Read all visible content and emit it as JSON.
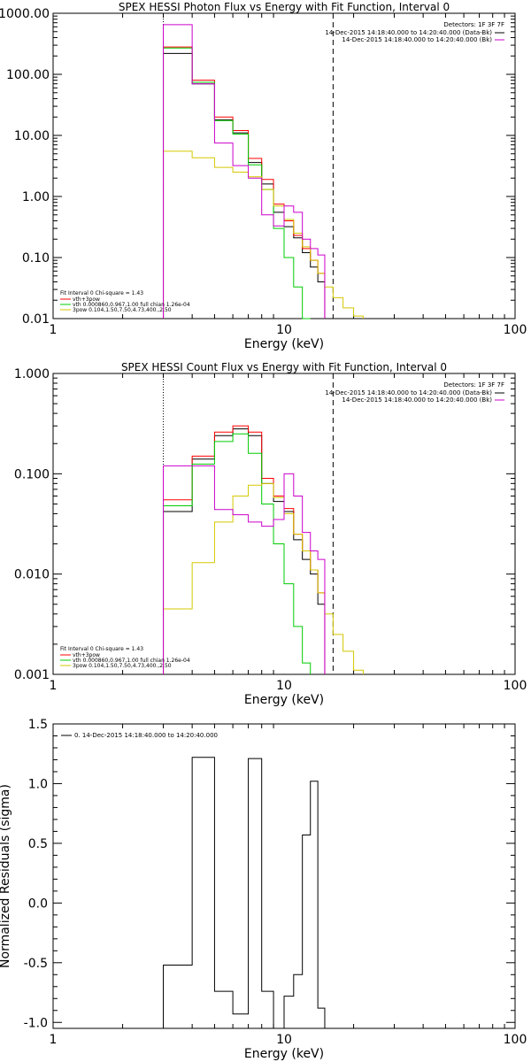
{
  "chart_data": [
    {
      "type": "line",
      "title": "SPEX HESSI Photon Flux vs Energy with Fit Function, Interval 0",
      "xlabel": "Energy (keV)",
      "ylabel": "",
      "xscale": "log",
      "yscale": "log",
      "xlim": [
        1,
        100
      ],
      "ylim": [
        0.01,
        1000
      ],
      "grid": false,
      "xticks": [
        "1",
        "10",
        "100"
      ],
      "yticks": [
        "1000.00",
        "100.00",
        "10.00",
        "1.00",
        "0.10",
        "0.01"
      ],
      "fit_range_keV": [
        3,
        16.3
      ],
      "legend_top_right": {
        "detectors": "Detectors: 1F 3F 7F",
        "entries": [
          {
            "label": "14-Dec-2015 14:18:40.000 to 14:20:40.000 (Data-Bk)",
            "color": "#000000"
          },
          {
            "label": "14-Dec-2015 14:18:40.000 to 14:20:40.000 (Bk)",
            "color": "#cc00cc"
          }
        ]
      },
      "legend_bottom_left": {
        "header": "Fit Interval  0   Chi-square = 1.43",
        "entries": [
          {
            "label": "vth+3pow",
            "color": "#ff0000"
          },
          {
            "label": "vth 0.000860,0.967,1.00  full chian 1.26e-04",
            "color": "#00cc00"
          },
          {
            "label": "3pow 0.104,1.50,7.50,4.73,400.,2.50",
            "color": "#d4c800"
          }
        ]
      },
      "edges": [
        3,
        4,
        5,
        6,
        7,
        8,
        9,
        10,
        11,
        12,
        13,
        14,
        15,
        16.3,
        18,
        20,
        22,
        25
      ],
      "series": [
        {
          "name": "Data-Bk",
          "color": "#000000",
          "values": [
            220,
            70,
            18,
            11,
            3.6,
            1.6,
            0.55,
            0.32,
            0.21,
            0.12,
            0.07,
            0.04,
            null,
            null,
            null,
            null,
            null
          ]
        },
        {
          "name": "vth+3pow",
          "color": "#ff0000",
          "values": [
            280,
            80,
            20,
            12,
            4.2,
            1.9,
            0.75,
            0.4,
            0.23,
            0.14,
            0.09,
            0.055,
            null,
            null,
            null,
            null,
            null
          ]
        },
        {
          "name": "vth",
          "color": "#00cc00",
          "values": [
            270,
            74,
            17.5,
            10.5,
            3.3,
            1.3,
            0.3,
            0.1,
            0.033,
            0.01,
            null,
            null,
            null,
            null,
            null,
            null,
            null
          ]
        },
        {
          "name": "3pow",
          "color": "#d4c800",
          "values": [
            5.5,
            4.3,
            3.0,
            2.5,
            2.1,
            1.3,
            0.7,
            0.42,
            0.25,
            0.15,
            0.09,
            0.055,
            0.033,
            0.022,
            0.015,
            0.011,
            null
          ]
        },
        {
          "name": "Bk",
          "color": "#cc00cc",
          "values": [
            650,
            70,
            7.5,
            3.2,
            2.0,
            0.5,
            0.33,
            0.7,
            0.55,
            0.2,
            0.14,
            0.11,
            null,
            null,
            null,
            null,
            null
          ]
        }
      ]
    },
    {
      "type": "line",
      "title": "SPEX HESSI Count Flux vs Energy with Fit Function, Interval 0",
      "xlabel": "Energy (keV)",
      "ylabel": "",
      "xscale": "log",
      "yscale": "log",
      "xlim": [
        1,
        100
      ],
      "ylim": [
        0.001,
        1
      ],
      "grid": false,
      "xticks": [
        "1",
        "10",
        "100"
      ],
      "yticks": [
        "1.000",
        "0.100",
        "0.010",
        "0.001"
      ],
      "fit_range_keV": [
        3,
        16.3
      ],
      "legend_top_right": {
        "detectors": "Detectors: 1F 3F 7F",
        "entries": [
          {
            "label": "14-Dec-2015 14:18:40.000 to 14:20:40.000 (Data-Bk)",
            "color": "#000000"
          },
          {
            "label": "14-Dec-2015 14:18:40.000 to 14:20:40.000 (Bk)",
            "color": "#cc00cc"
          }
        ]
      },
      "legend_bottom_left": {
        "header": "Fit Interval  0   Chi-square = 1.43",
        "entries": [
          {
            "label": "vth+3pow",
            "color": "#ff0000"
          },
          {
            "label": "vth 0.000860,0.967,1.00  full chian 1.26e-04",
            "color": "#00cc00"
          },
          {
            "label": "3pow 0.104,1.50,7.50,4.73,400.,2.50",
            "color": "#d4c800"
          }
        ]
      },
      "edges": [
        3,
        4,
        5,
        6,
        7,
        8,
        9,
        10,
        11,
        12,
        13,
        14,
        15,
        16.3,
        18,
        20,
        22,
        25
      ],
      "series": [
        {
          "name": "Data-Bk",
          "color": "#000000",
          "values": [
            0.042,
            0.14,
            0.24,
            0.28,
            0.24,
            0.08,
            0.053,
            0.042,
            0.022,
            0.014,
            0.01,
            0.005,
            null,
            null,
            null,
            null,
            null
          ]
        },
        {
          "name": "vth+3pow",
          "color": "#ff0000",
          "values": [
            0.055,
            0.15,
            0.26,
            0.3,
            0.26,
            0.09,
            0.06,
            0.045,
            0.025,
            0.017,
            0.011,
            0.0065,
            null,
            null,
            null,
            null,
            null
          ]
        },
        {
          "name": "vth",
          "color": "#00cc00",
          "values": [
            0.048,
            0.125,
            0.21,
            0.25,
            0.16,
            0.05,
            0.02,
            0.008,
            0.003,
            0.0013,
            null,
            null,
            null,
            null,
            null,
            null,
            null
          ]
        },
        {
          "name": "3pow",
          "color": "#d4c800",
          "values": [
            0.0045,
            0.013,
            0.033,
            0.06,
            0.077,
            0.08,
            0.058,
            0.04,
            0.025,
            0.017,
            0.011,
            0.0065,
            0.004,
            0.0025,
            0.0017,
            0.0011,
            null
          ]
        },
        {
          "name": "Bk",
          "color": "#cc00cc",
          "values": [
            0.12,
            0.12,
            0.044,
            0.039,
            0.033,
            0.03,
            0.035,
            0.1,
            0.06,
            0.026,
            0.017,
            0.014,
            null,
            null,
            null,
            null,
            null
          ]
        }
      ]
    },
    {
      "type": "line",
      "title": "",
      "xlabel": "Energy (keV)",
      "ylabel": "Normalized Residuals (sigma)",
      "xscale": "log",
      "yscale": "linear",
      "xlim": [
        1,
        100
      ],
      "ylim": [
        -1.05,
        1.5
      ],
      "grid": false,
      "xticks": [
        "1",
        "10",
        "100"
      ],
      "yticks": [
        "1.5",
        "1.0",
        "0.5",
        "0.0",
        "-0.5",
        "-1.0"
      ],
      "legend_top_left": [
        {
          "label": "0. 14-Dec-2015 14:18:40.000 to 14:20:40.000",
          "color": "#000000"
        }
      ],
      "edges": [
        3,
        4,
        5,
        6,
        7,
        8,
        9,
        10,
        11,
        12,
        13,
        14,
        15,
        16
      ],
      "series": [
        {
          "name": "0. 14-Dec-2015 14:18:40.000 to 14:20:40.000",
          "color": "#000000",
          "values": [
            -0.52,
            1.22,
            -0.74,
            -0.93,
            1.21,
            -0.74,
            -1.05,
            -0.78,
            -0.6,
            0.57,
            1.02,
            -0.88,
            null
          ]
        }
      ]
    }
  ]
}
